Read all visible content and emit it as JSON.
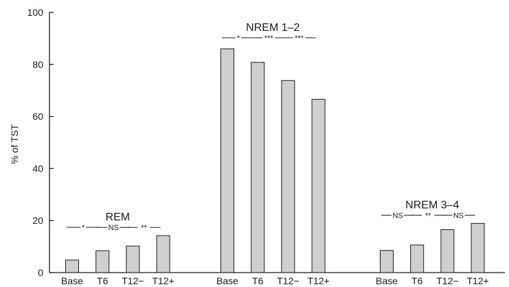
{
  "chart_data": {
    "type": "bar",
    "ylabel": "% of TST",
    "ylim": [
      0,
      100
    ],
    "yticks": [
      "0",
      "20",
      "40",
      "60",
      "80",
      "100"
    ],
    "categories": [
      "Base",
      "T6",
      "T12−",
      "T12+"
    ],
    "groups": [
      {
        "name": "REM",
        "values": [
          4.8,
          8.4,
          10.2,
          14.2
        ],
        "comparisons": [
          "*",
          "NS",
          "**"
        ]
      },
      {
        "name": "NREM 1–2",
        "values": [
          86,
          80.8,
          73.8,
          66.6
        ],
        "comparisons": [
          "*",
          "***",
          "***"
        ]
      },
      {
        "name": "NREM 3–4",
        "values": [
          8.5,
          10.6,
          16.5,
          18.9
        ],
        "comparisons": [
          "NS",
          "**",
          "NS"
        ]
      }
    ],
    "colors": {
      "bar_fill": "#cfcfcf",
      "bar_stroke": "#1a1a1a"
    }
  }
}
